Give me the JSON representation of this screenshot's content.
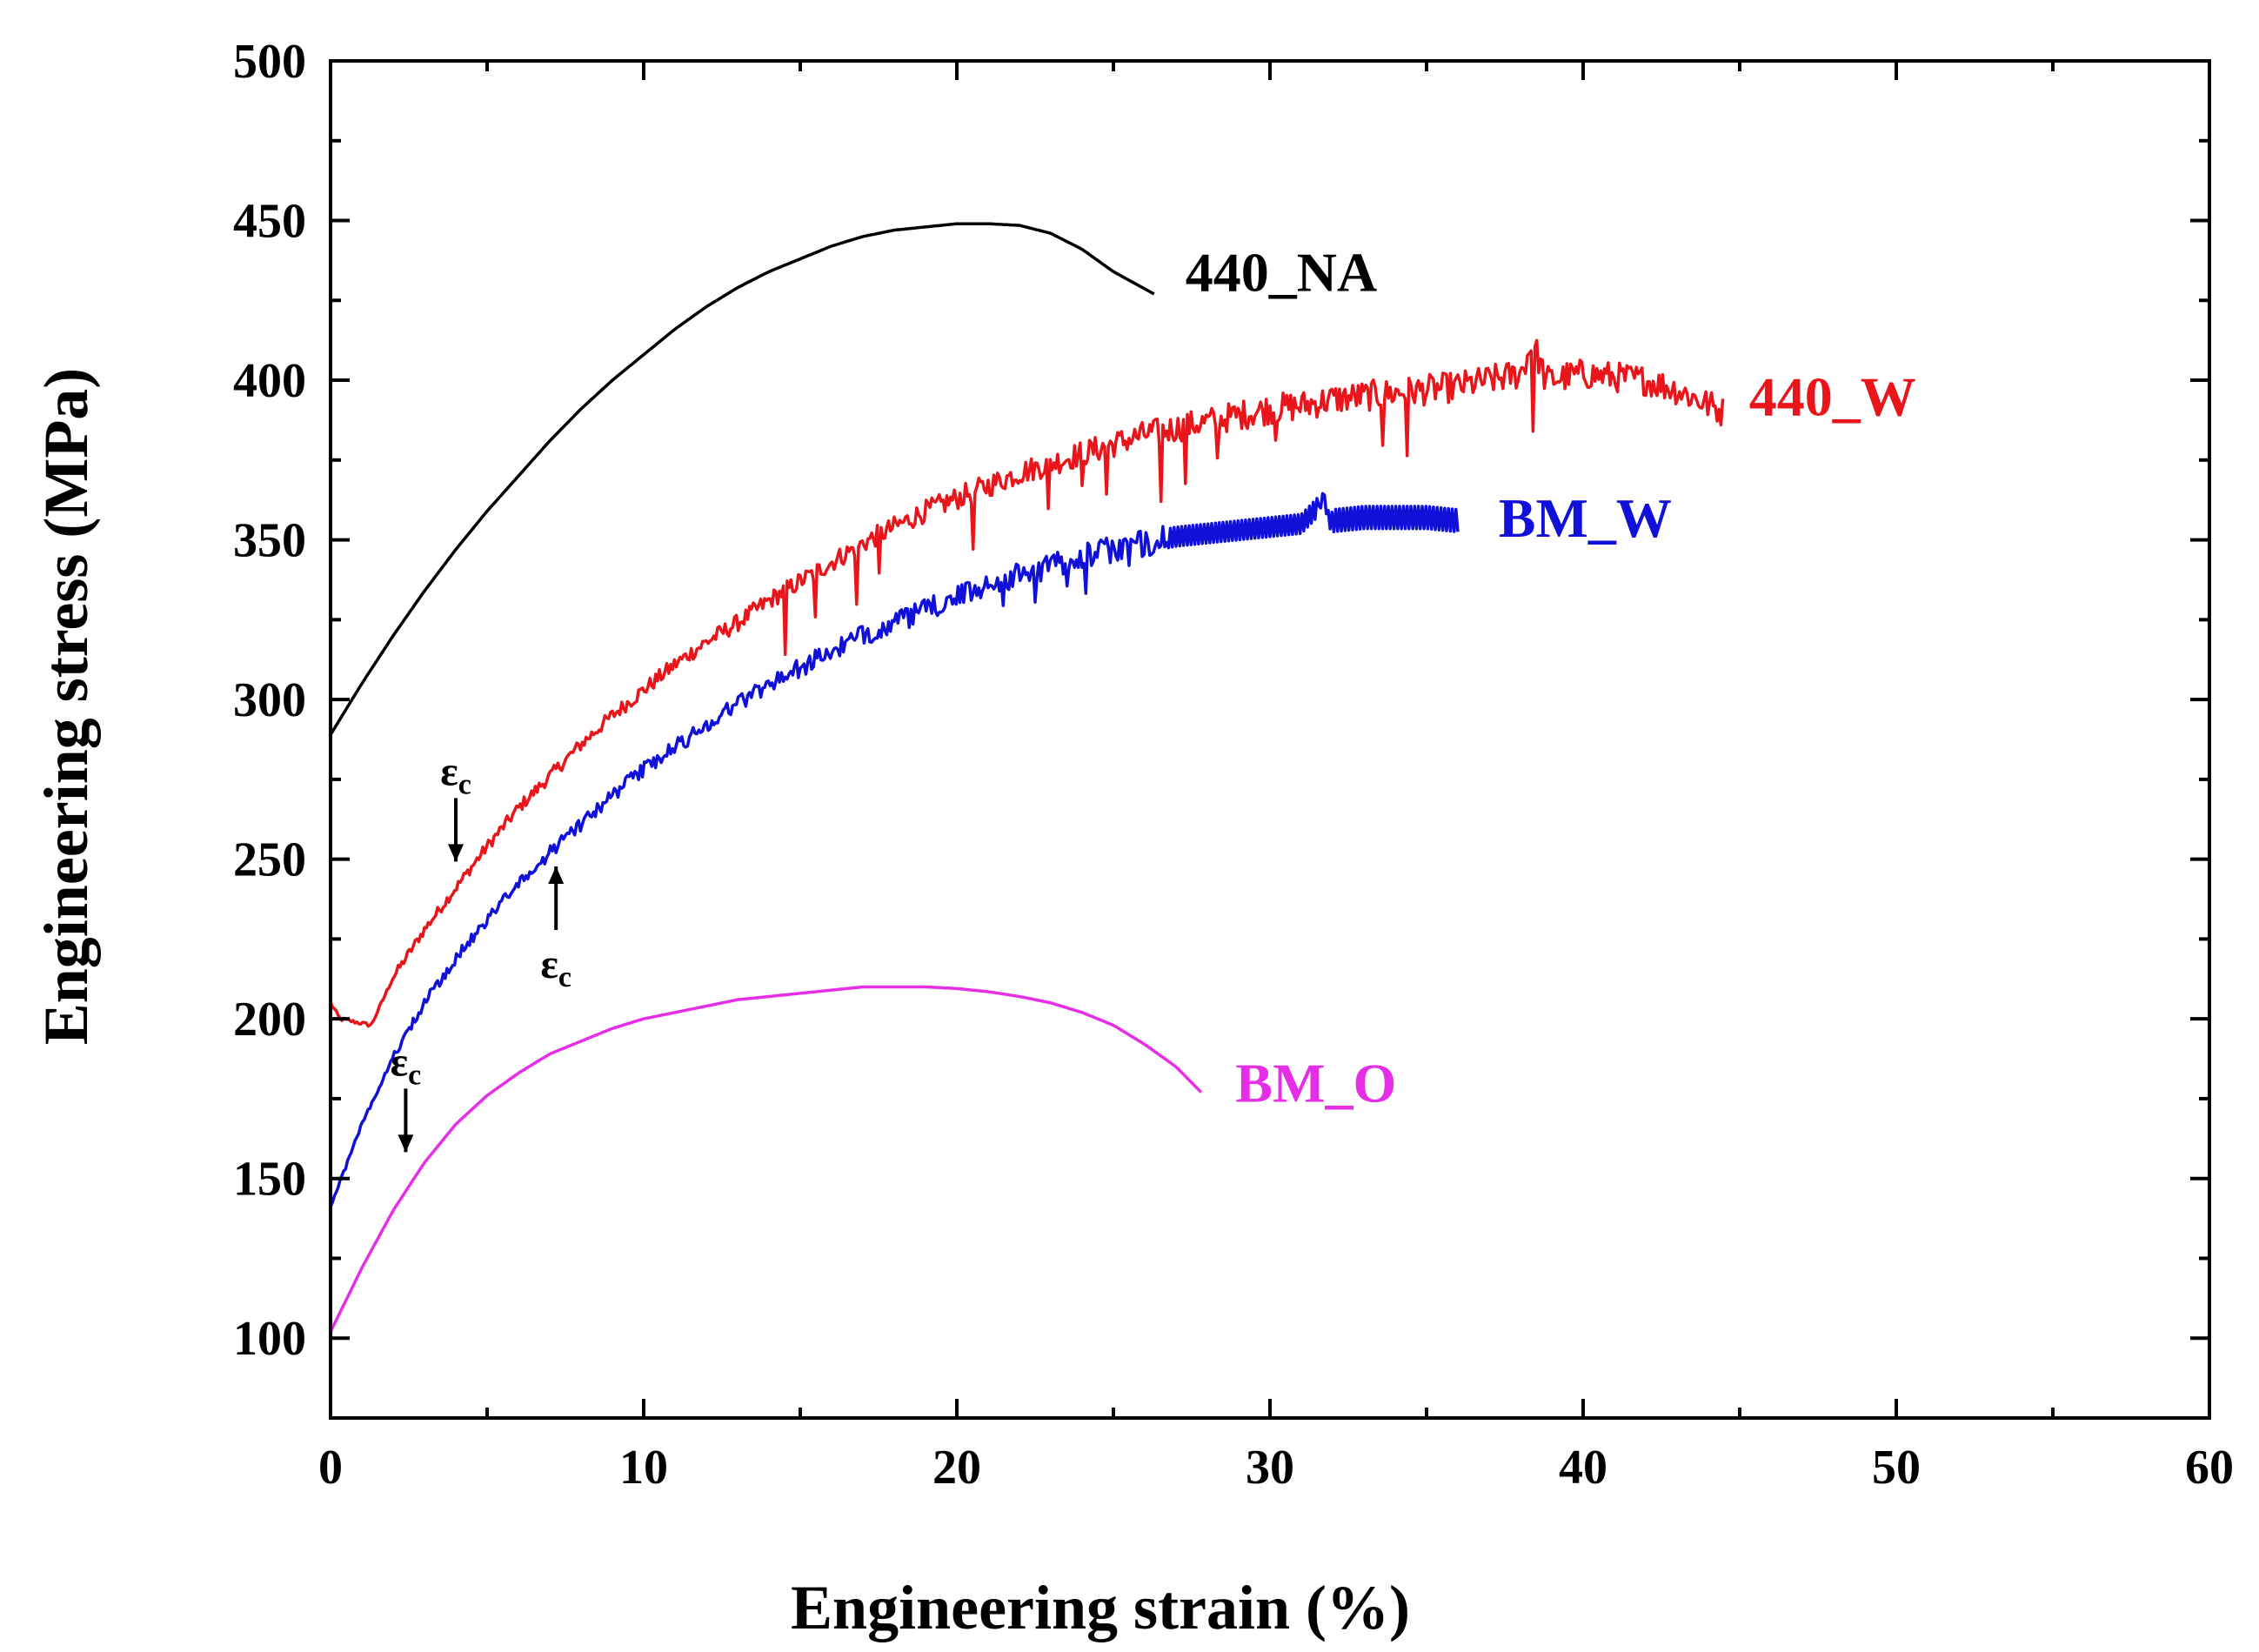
{
  "chart_data": {
    "type": "line",
    "title": "",
    "xlabel": "Engineering strain (%)",
    "ylabel": "Engineering stress (MPa)",
    "xlim": [
      0,
      60
    ],
    "ylim": [
      75,
      500
    ],
    "x_ticks": [
      "0",
      "10",
      "20",
      "30",
      "40",
      "50",
      "60"
    ],
    "y_ticks": [
      "100",
      "150",
      "200",
      "250",
      "300",
      "350",
      "400",
      "450",
      "500"
    ],
    "series": [
      {
        "name": "440_NA",
        "color": "#000000",
        "serrated": false,
        "points": [
          [
            0,
            289
          ],
          [
            1,
            305
          ],
          [
            2,
            320
          ],
          [
            3,
            334
          ],
          [
            4,
            347
          ],
          [
            5,
            359
          ],
          [
            6,
            370
          ],
          [
            7,
            381
          ],
          [
            8,
            391
          ],
          [
            9,
            400
          ],
          [
            10,
            408
          ],
          [
            11,
            416
          ],
          [
            12,
            423
          ],
          [
            13,
            429
          ],
          [
            14,
            434
          ],
          [
            15,
            438
          ],
          [
            16,
            442
          ],
          [
            17,
            445
          ],
          [
            18,
            447
          ],
          [
            19,
            448
          ],
          [
            20,
            449
          ],
          [
            21,
            449
          ],
          [
            22,
            448.5
          ],
          [
            23,
            446
          ],
          [
            24,
            441
          ],
          [
            25,
            434
          ],
          [
            26.3,
            427
          ]
        ]
      },
      {
        "name": "440_W",
        "color": "#e8151b",
        "serrated": true,
        "points": [
          [
            0,
            205
          ],
          [
            0.3,
            200
          ],
          [
            1.3,
            198
          ],
          [
            2,
            213
          ],
          [
            3,
            228
          ],
          [
            4,
            241
          ],
          [
            5,
            254
          ],
          [
            6,
            266
          ],
          [
            7,
            276
          ],
          [
            8,
            286
          ],
          [
            9,
            295
          ],
          [
            10,
            303
          ],
          [
            11,
            311
          ],
          [
            12,
            318
          ],
          [
            13,
            324
          ],
          [
            14,
            331
          ],
          [
            15,
            337
          ],
          [
            16,
            343
          ],
          [
            17,
            349
          ],
          [
            18,
            354
          ],
          [
            19,
            359
          ],
          [
            20,
            363
          ],
          [
            21,
            367
          ],
          [
            22,
            371
          ],
          [
            23,
            374
          ],
          [
            24,
            377
          ],
          [
            25,
            380
          ],
          [
            26,
            383
          ],
          [
            27,
            385
          ],
          [
            28,
            387
          ],
          [
            29,
            389
          ],
          [
            30,
            391
          ],
          [
            31,
            392
          ],
          [
            32,
            394
          ],
          [
            33,
            395
          ],
          [
            34,
            396
          ],
          [
            35,
            397
          ],
          [
            36,
            398
          ],
          [
            37,
            400
          ],
          [
            38,
            402
          ],
          [
            38.4,
            412
          ],
          [
            38.8,
            400
          ],
          [
            40,
            402
          ],
          [
            41,
            401
          ],
          [
            42,
            400
          ],
          [
            43,
            397
          ],
          [
            44.5,
            390
          ]
        ],
        "dips": [
          [
            14.5,
            337,
            20
          ],
          [
            15.5,
            343,
            14
          ],
          [
            16.8,
            349,
            18
          ],
          [
            17.5,
            352,
            12
          ],
          [
            20.5,
            365,
            18
          ],
          [
            22.9,
            373,
            14
          ],
          [
            24,
            377,
            10
          ],
          [
            24.8,
            379,
            15
          ],
          [
            26.5,
            384,
            22
          ],
          [
            27.3,
            386,
            18
          ],
          [
            28.3,
            388,
            12
          ],
          [
            30.2,
            391,
            10
          ],
          [
            33.6,
            396,
            16
          ],
          [
            34.4,
            397,
            20
          ],
          [
            38.4,
            408,
            28
          ]
        ]
      },
      {
        "name": "BM_W",
        "color": "#1010d8",
        "serrated": true,
        "points": [
          [
            0,
            141
          ],
          [
            1,
            167
          ],
          [
            2,
            188
          ],
          [
            3,
            205
          ],
          [
            4,
            219
          ],
          [
            5,
            231
          ],
          [
            6,
            242
          ],
          [
            7,
            252
          ],
          [
            8,
            261
          ],
          [
            9,
            270
          ],
          [
            10,
            278
          ],
          [
            11,
            285
          ],
          [
            12,
            292
          ],
          [
            13,
            299
          ],
          [
            14,
            305
          ],
          [
            15,
            310
          ],
          [
            16,
            315
          ],
          [
            17,
            320
          ],
          [
            18,
            324
          ],
          [
            19,
            328
          ],
          [
            20,
            332
          ],
          [
            21,
            336
          ],
          [
            22,
            339
          ],
          [
            23,
            342
          ],
          [
            24,
            345
          ],
          [
            25,
            347
          ],
          [
            26,
            349
          ],
          [
            27,
            351
          ],
          [
            28,
            352
          ],
          [
            29,
            353
          ],
          [
            30,
            354
          ],
          [
            31,
            355
          ],
          [
            31.7,
            362
          ],
          [
            32,
            356
          ],
          [
            33,
            357
          ],
          [
            34,
            357
          ],
          [
            35,
            357
          ],
          [
            36,
            356
          ]
        ],
        "dips": [
          [
            21.5,
            338,
            8
          ],
          [
            22.5,
            340,
            10
          ],
          [
            23.5,
            343,
            8
          ],
          [
            24.1,
            345,
            12
          ],
          [
            25.5,
            348,
            6
          ]
        ],
        "oscillation": [
          [
            26.8,
            31.5,
            6
          ],
          [
            32,
            36,
            7
          ]
        ]
      },
      {
        "name": "BM_O",
        "color": "#e62ee6",
        "serrated": false,
        "points": [
          [
            0,
            102
          ],
          [
            1,
            122
          ],
          [
            2,
            140
          ],
          [
            3,
            155
          ],
          [
            4,
            167
          ],
          [
            5,
            176
          ],
          [
            6,
            183
          ],
          [
            7,
            189
          ],
          [
            8,
            193
          ],
          [
            9,
            197
          ],
          [
            10,
            200
          ],
          [
            11,
            202
          ],
          [
            12,
            204
          ],
          [
            13,
            206
          ],
          [
            14,
            207
          ],
          [
            15,
            208
          ],
          [
            16,
            209
          ],
          [
            17,
            210
          ],
          [
            18,
            210
          ],
          [
            19,
            210
          ],
          [
            20,
            209.5
          ],
          [
            21,
            208.5
          ],
          [
            22,
            207
          ],
          [
            23,
            205
          ],
          [
            24,
            202
          ],
          [
            25,
            198
          ],
          [
            26,
            192
          ],
          [
            27,
            185
          ],
          [
            27.8,
            177
          ]
        ]
      }
    ],
    "annotations": [
      {
        "text": "ε",
        "sub": "c",
        "series": "440_W",
        "arrow": "down",
        "x": 4.0,
        "y": 246
      },
      {
        "text": "ε",
        "sub": "c",
        "series": "BM_W",
        "arrow": "up",
        "x": 7.2,
        "y": 251
      },
      {
        "text": "ε",
        "sub": "c",
        "series": "BM_O",
        "arrow": "down",
        "x": 2.4,
        "y": 155
      }
    ],
    "legend": "inline"
  }
}
